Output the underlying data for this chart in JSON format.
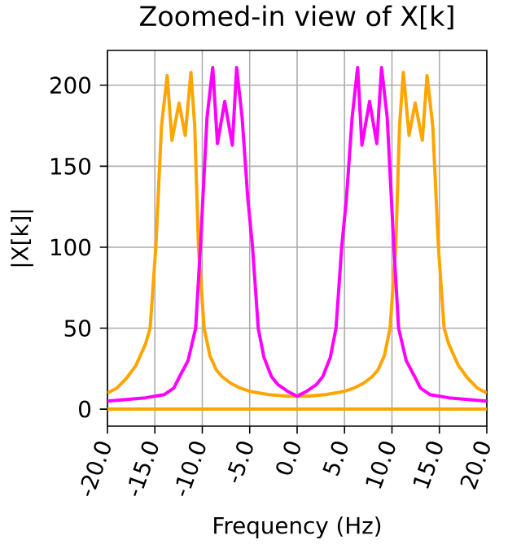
{
  "chart_data": {
    "type": "line",
    "title": "Zoomed-in view of X[k]",
    "xlabel": "Frequency (Hz)",
    "ylabel": "|X[k]|",
    "xlim": [
      -20,
      20
    ],
    "ylim": [
      -10.5,
      221.5
    ],
    "xticks": [
      {
        "value": -20,
        "label": "-20.0"
      },
      {
        "value": -15,
        "label": "-15.0"
      },
      {
        "value": -10,
        "label": "-10.0"
      },
      {
        "value": -5,
        "label": "-5.0"
      },
      {
        "value": 0,
        "label": "0.0"
      },
      {
        "value": 5,
        "label": "5.0"
      },
      {
        "value": 10,
        "label": "10.0"
      },
      {
        "value": 15,
        "label": "15.0"
      },
      {
        "value": 20,
        "label": "20.0"
      }
    ],
    "yticks": [
      0,
      50,
      100,
      150,
      200
    ],
    "grid": true,
    "line_style": "solid",
    "series": [
      {
        "color": "#ffa500",
        "x": [
          -20,
          -19,
          -18,
          -17,
          -16,
          -15.5,
          -14.9,
          -14.3,
          -13.7,
          -13.2,
          -12.45,
          -11.8,
          -11.2,
          -10.8,
          -10.4,
          -9.8,
          -9.2,
          -8.5,
          -7.9,
          -7,
          -6,
          -5,
          -4,
          -3,
          -2,
          -1,
          0,
          1,
          2,
          3,
          4,
          5,
          6,
          7,
          7.9,
          8.5,
          9.2,
          9.8,
          10.4,
          10.8,
          11.2,
          11.8,
          12.45,
          13.2,
          13.7,
          14.3,
          14.9,
          15.5,
          16,
          17,
          18,
          19,
          20
        ],
        "values": [
          10,
          13,
          19,
          27,
          40,
          50,
          100,
          175,
          206,
          166,
          189,
          169,
          208,
          175,
          100,
          50,
          33,
          24,
          20,
          16,
          13,
          11,
          10,
          9,
          8.5,
          8,
          8,
          8,
          8.5,
          9,
          10,
          11,
          13,
          16,
          20,
          24,
          33,
          50,
          100,
          175,
          208,
          169,
          189,
          166,
          206,
          175,
          100,
          50,
          40,
          27,
          19,
          13,
          10
        ]
      },
      {
        "color": "#ff00ff",
        "x": [
          -20,
          -18,
          -16,
          -14,
          -13,
          -12.4,
          -11.5,
          -10.7,
          -10.2,
          -9.5,
          -8.9,
          -8.4,
          -7.64,
          -6.83,
          -6.38,
          -5.8,
          -5.2,
          -4.7,
          -4.1,
          -3.5,
          -2.7,
          -2,
          -1,
          0,
          1,
          2,
          2.7,
          3.5,
          4.1,
          4.7,
          5.2,
          5.8,
          6.38,
          6.83,
          7.64,
          8.4,
          8.9,
          9.5,
          10.2,
          10.7,
          11.5,
          12.4,
          13,
          14,
          16,
          18,
          20
        ],
        "values": [
          5,
          6,
          7,
          9,
          13,
          20,
          30,
          50,
          100,
          180,
          211,
          164,
          190,
          163,
          211,
          180,
          130,
          100,
          50,
          32,
          20,
          15,
          11,
          8,
          11,
          15,
          20,
          32,
          50,
          100,
          130,
          180,
          211,
          163,
          190,
          164,
          211,
          180,
          100,
          50,
          30,
          20,
          13,
          9,
          7,
          6,
          5
        ]
      },
      {
        "color": "#ffa500",
        "x": [
          -20,
          20
        ],
        "values": [
          0,
          0
        ]
      }
    ]
  }
}
